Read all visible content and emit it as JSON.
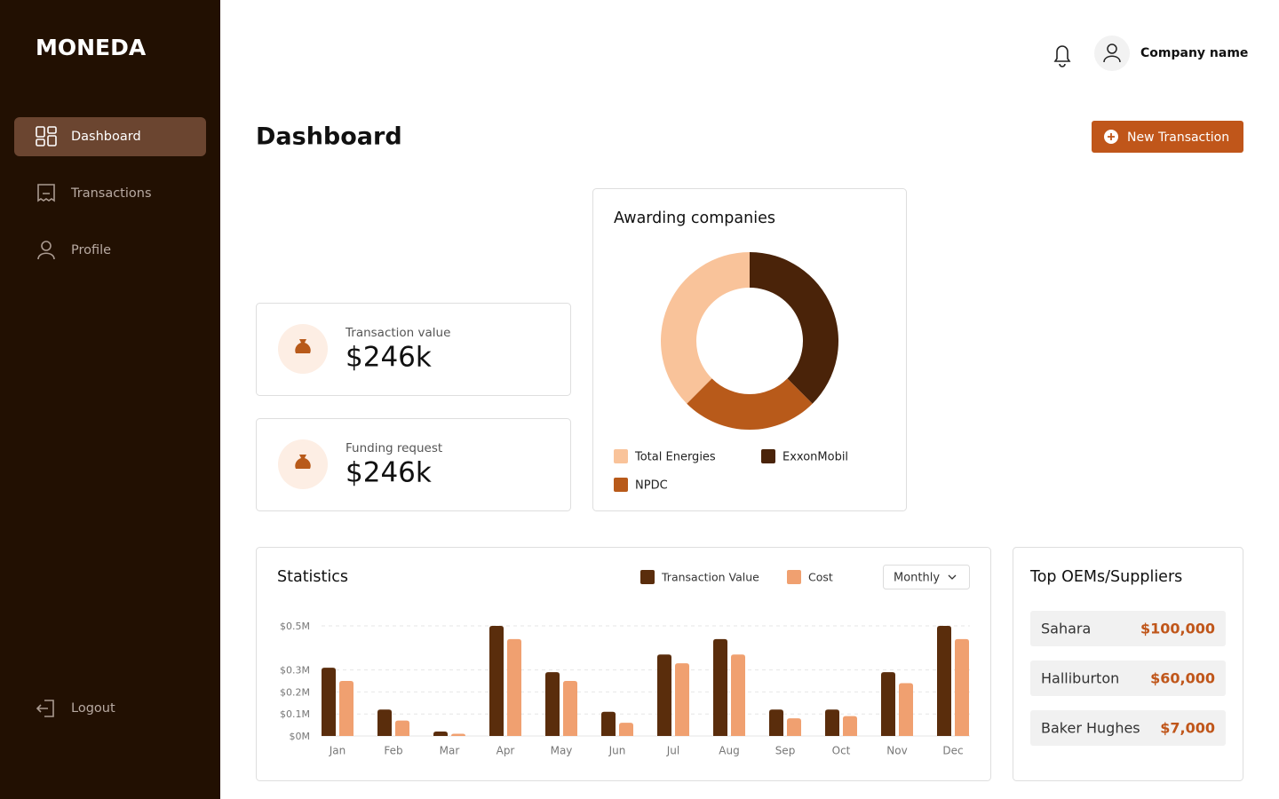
{
  "sidebar": {
    "logo": "MONEDA",
    "nav": [
      "Dashboard",
      "Transactions",
      "Profile"
    ],
    "logout": "Logout"
  },
  "header": {
    "company": "Company name",
    "title": "Dashboard",
    "button": "New Transaction"
  },
  "cards": [
    {
      "label": "Transaction value",
      "value": "$246k"
    },
    {
      "label": "Funding request",
      "value": "$246k"
    }
  ],
  "controls": {
    "period": "Monthly"
  },
  "chart_data": [
    {
      "type": "donut",
      "title": "Awarding companies",
      "categories": [
        "Total Energies",
        "ExxonMobil",
        "NPDC"
      ],
      "values": [
        37.5,
        37.5,
        25
      ],
      "colors": [
        "#f9c39a",
        "#4a2309",
        "#b85a1a"
      ]
    },
    {
      "type": "bar",
      "title": "Statistics",
      "categories": [
        "Jan",
        "Feb",
        "Mar",
        "Apr",
        "May",
        "Jun",
        "Jul",
        "Aug",
        "Sep",
        "Oct",
        "Nov",
        "Dec"
      ],
      "series": [
        {
          "name": "Transaction Value",
          "color": "#5a2d0c",
          "values": [
            0.31,
            0.12,
            0.02,
            0.5,
            0.29,
            0.11,
            0.37,
            0.44,
            0.12,
            0.12,
            0.29,
            0.5
          ]
        },
        {
          "name": "Cost",
          "color": "#f0a070",
          "values": [
            0.25,
            0.07,
            0.01,
            0.44,
            0.25,
            0.06,
            0.33,
            0.37,
            0.08,
            0.09,
            0.24,
            0.44
          ]
        }
      ],
      "ylim": [
        0,
        0.5
      ],
      "yticks": [
        {
          "value": 0,
          "label": "$0M"
        },
        {
          "value": 0.1,
          "label": "$0.1M"
        },
        {
          "value": 0.2,
          "label": "$0.2M"
        },
        {
          "value": 0.3,
          "label": "$0.3M"
        },
        {
          "value": 0.5,
          "label": "$0.5M"
        }
      ],
      "grid": true
    }
  ],
  "suppliers": {
    "title": "Top OEMs/Suppliers",
    "rows": [
      {
        "name": "Sahara",
        "amount": "$100,000"
      },
      {
        "name": "Halliburton",
        "amount": "$60,000"
      },
      {
        "name": "Baker Hughes",
        "amount": "$7,000"
      }
    ]
  }
}
